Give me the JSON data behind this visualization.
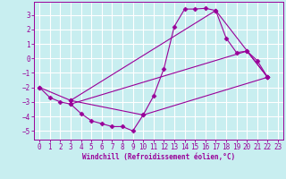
{
  "xlabel": "Windchill (Refroidissement éolien,°C)",
  "bg_color": "#c8eef0",
  "grid_color": "#ffffff",
  "line_color": "#990099",
  "marker": "D",
  "markersize": 2.5,
  "linewidth": 0.8,
  "xlim": [
    -0.5,
    23.5
  ],
  "ylim": [
    -5.6,
    3.9
  ],
  "xticks": [
    0,
    1,
    2,
    3,
    4,
    5,
    6,
    7,
    8,
    9,
    10,
    11,
    12,
    13,
    14,
    15,
    16,
    17,
    18,
    19,
    20,
    21,
    22,
    23
  ],
  "yticks": [
    -5,
    -4,
    -3,
    -2,
    -1,
    0,
    1,
    2,
    3
  ],
  "xlabel_fontsize": 5.5,
  "tick_fontsize": 5.5,
  "lines": [
    {
      "x": [
        0,
        1,
        2,
        3,
        4,
        5,
        6,
        7,
        8,
        9,
        10,
        11,
        12,
        13,
        14,
        15,
        16,
        17,
        18,
        19,
        20,
        21,
        22
      ],
      "y": [
        -2.0,
        -2.7,
        -3.0,
        -3.15,
        -3.8,
        -4.3,
        -4.5,
        -4.7,
        -4.7,
        -5.0,
        -3.9,
        -2.6,
        -0.7,
        2.2,
        3.4,
        3.4,
        3.45,
        3.3,
        1.4,
        0.4,
        0.5,
        -0.15,
        -1.3
      ]
    },
    {
      "x": [
        0,
        3,
        10,
        22
      ],
      "y": [
        -2.0,
        -2.9,
        -3.9,
        -1.3
      ]
    },
    {
      "x": [
        3,
        17,
        22
      ],
      "y": [
        -2.9,
        3.3,
        -1.3
      ]
    },
    {
      "x": [
        3,
        20,
        22
      ],
      "y": [
        -3.15,
        0.5,
        -1.3
      ]
    }
  ]
}
